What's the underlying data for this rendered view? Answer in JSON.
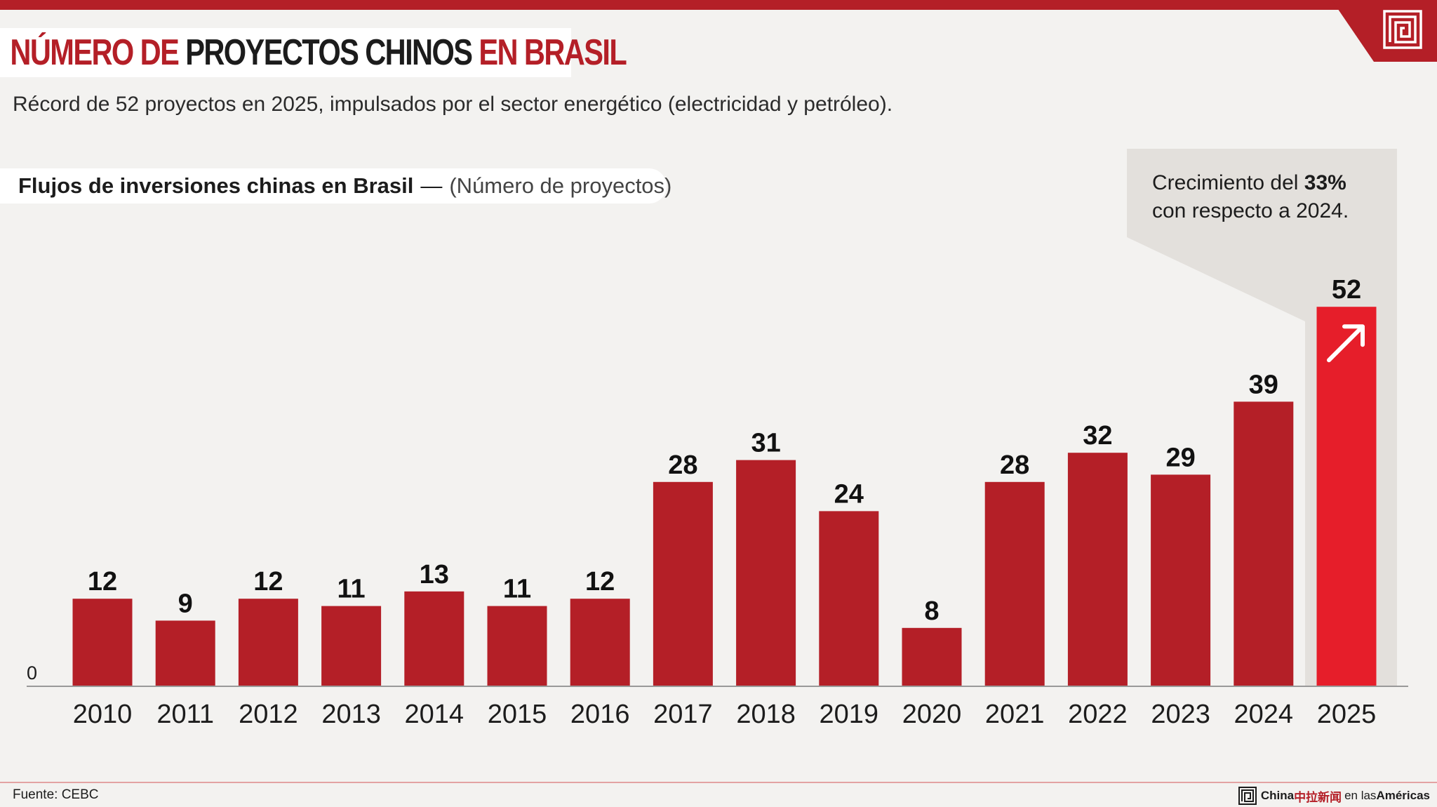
{
  "title": {
    "part1": "NÚMERO DE ",
    "part2": "PROYECTOS CHINOS",
    "part3": " EN ",
    "part4": "BRASIL"
  },
  "subtitle": "Récord de 52 proyectos en 2025, impulsados por el sector energético (electricidad y petróleo).",
  "chart_label": {
    "bold": "Flujos de inversiones chinas en Brasil",
    "separator": "—",
    "unit": "(Número de proyectos)"
  },
  "callout": {
    "line1_prefix": "Crecimiento del ",
    "line1_value": "33%",
    "line2": "con respecto a 2024."
  },
  "chart_data": {
    "type": "bar",
    "title": "Flujos de inversiones chinas en Brasil",
    "ylabel": "(Número de proyectos)",
    "categories": [
      "2010",
      "2011",
      "2012",
      "2013",
      "2014",
      "2015",
      "2016",
      "2017",
      "2018",
      "2019",
      "2020",
      "2021",
      "2022",
      "2023",
      "2024",
      "2025"
    ],
    "values": [
      12,
      9,
      12,
      11,
      13,
      11,
      12,
      28,
      31,
      24,
      8,
      28,
      32,
      29,
      39,
      52
    ],
    "y_tick_label": "0",
    "ylim": [
      0,
      55
    ],
    "grid": false,
    "highlight_category": "2025",
    "colors": {
      "bar": "#b41f27",
      "highlight": "#e61e2a"
    }
  },
  "footer": {
    "source": "Fuente: CEBC",
    "brand_china": "China",
    "brand_cn": "中拉新闻",
    "brand_mid": " en las ",
    "brand_americas": "Américas"
  },
  "icons": {
    "corner_logo": "meander-logo-icon",
    "highlight_arrow": "arrow-up-right-icon",
    "brand_logo": "meander-logo-icon"
  }
}
